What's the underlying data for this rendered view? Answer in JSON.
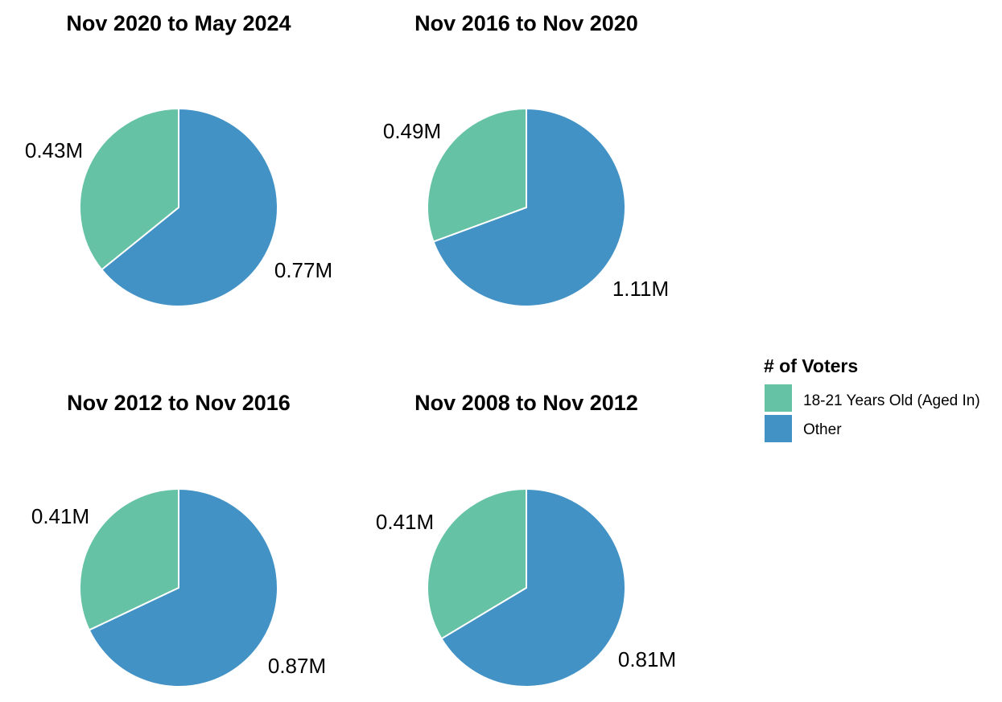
{
  "colors": {
    "aged_in": "#66c2a5",
    "other": "#4292c6"
  },
  "legend": {
    "title": "# of Voters",
    "items": [
      {
        "label": "18-21 Years Old (Aged In)",
        "color": "#66c2a5"
      },
      {
        "label": "Other",
        "color": "#4292c6"
      }
    ]
  },
  "chart_data": [
    {
      "type": "pie",
      "title": "Nov 2020 to May 2024",
      "slices": [
        {
          "name": "18-21 Years Old (Aged In)",
          "value": 0.43,
          "label": "0.43M"
        },
        {
          "name": "Other",
          "value": 0.77,
          "label": "0.77M"
        }
      ]
    },
    {
      "type": "pie",
      "title": "Nov 2016 to Nov 2020",
      "slices": [
        {
          "name": "18-21 Years Old (Aged In)",
          "value": 0.49,
          "label": "0.49M"
        },
        {
          "name": "Other",
          "value": 1.11,
          "label": "1.11M"
        }
      ]
    },
    {
      "type": "pie",
      "title": "Nov 2012 to Nov 2016",
      "slices": [
        {
          "name": "18-21 Years Old (Aged In)",
          "value": 0.41,
          "label": "0.41M"
        },
        {
          "name": "Other",
          "value": 0.87,
          "label": "0.87M"
        }
      ]
    },
    {
      "type": "pie",
      "title": "Nov 2008 to Nov 2012",
      "slices": [
        {
          "name": "18-21 Years Old (Aged In)",
          "value": 0.41,
          "label": "0.41M"
        },
        {
          "name": "Other",
          "value": 0.81,
          "label": "0.81M"
        }
      ]
    }
  ]
}
